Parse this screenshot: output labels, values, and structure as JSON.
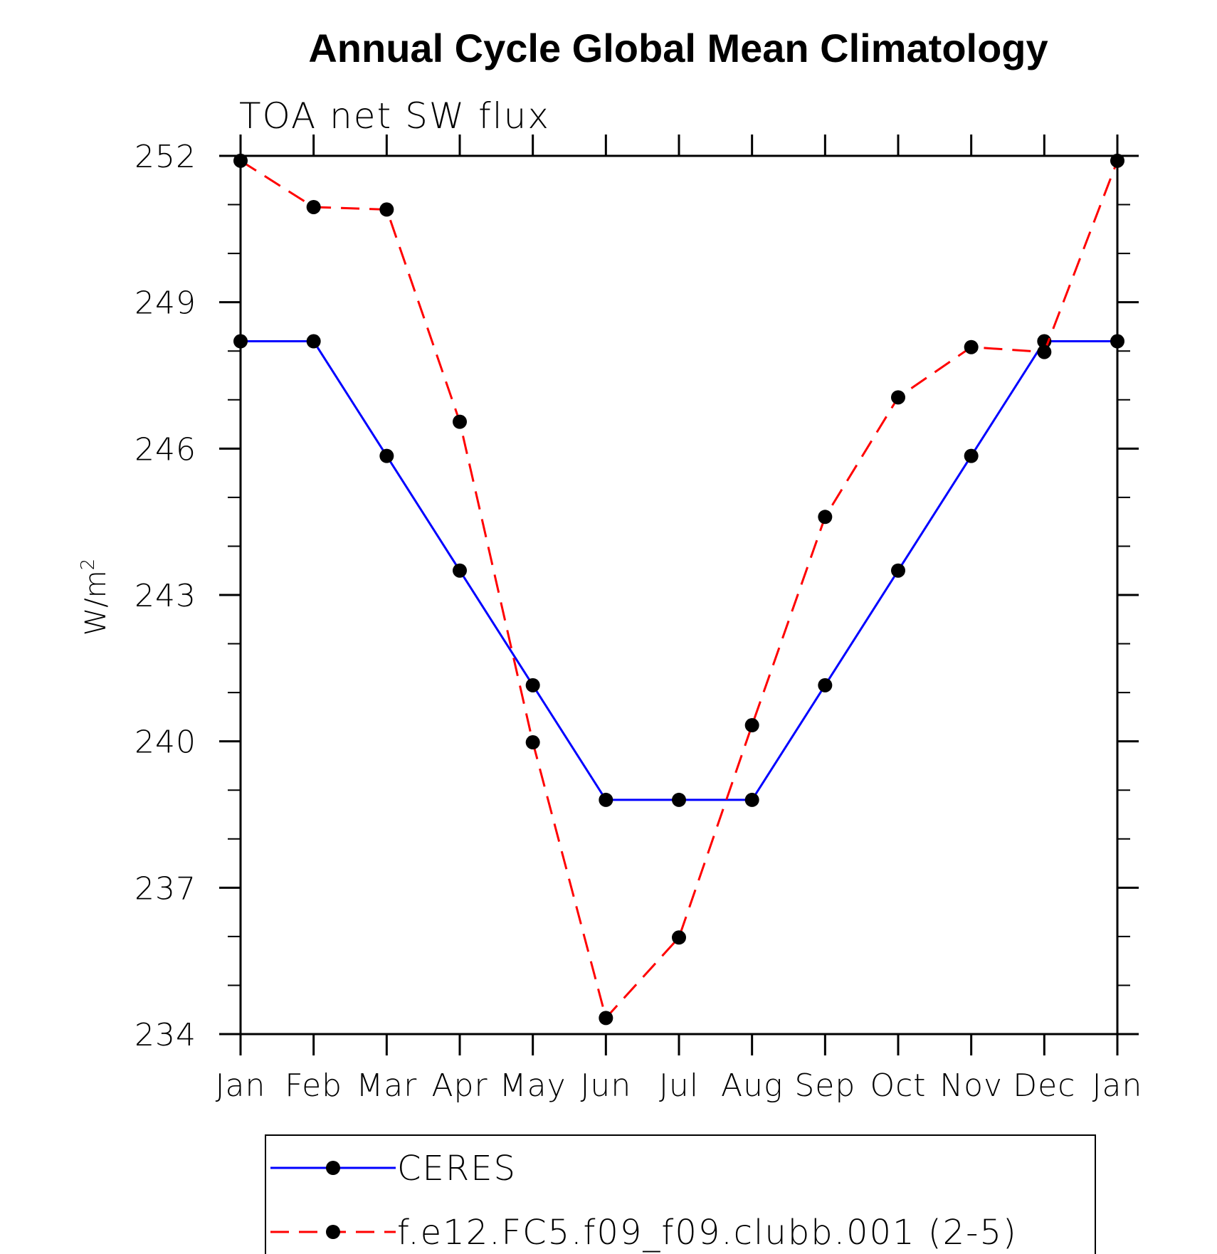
{
  "chart_data": {
    "type": "line",
    "title": "Annual Cycle Global Mean Climatology",
    "subtitle": "TOA net SW flux",
    "ylabel": "W/m",
    "ylabel_superscript": "2",
    "ylim": [
      234,
      252
    ],
    "yticks": [
      234,
      237,
      240,
      243,
      246,
      249,
      252
    ],
    "categories": [
      "Jan",
      "Feb",
      "Mar",
      "Apr",
      "May",
      "Jun",
      "Jul",
      "Aug",
      "Sep",
      "Oct",
      "Nov",
      "Dec",
      "Jan"
    ],
    "grid": false,
    "legend_position": "bottom",
    "series": [
      {
        "name": "CERES",
        "color": "#0000ff",
        "line_style": "solid",
        "marker": "filled-circle",
        "values": [
          248.2,
          248.2,
          245.85,
          243.5,
          241.15,
          238.8,
          238.8,
          238.8,
          241.15,
          243.5,
          245.85,
          248.2,
          248.2
        ]
      },
      {
        "name": "f.e12.FC5.f09_f09.clubb.001 (2-5)",
        "color": "#ff0000",
        "line_style": "dashed",
        "marker": "filled-circle",
        "values": [
          251.9,
          250.95,
          250.9,
          246.55,
          239.98,
          234.33,
          235.98,
          240.33,
          244.6,
          247.05,
          248.08,
          247.98,
          251.9
        ]
      }
    ]
  }
}
